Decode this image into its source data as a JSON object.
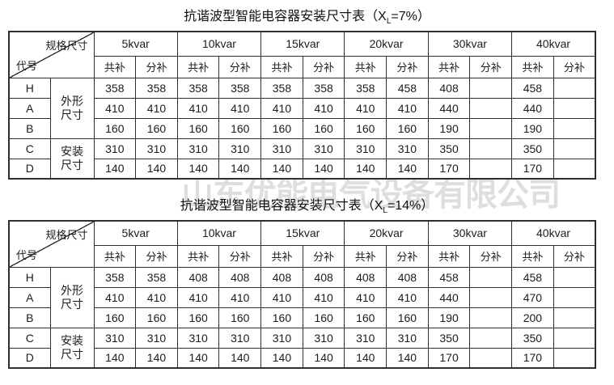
{
  "page": {
    "background": "#ffffff",
    "border_color": "#2e2e2e",
    "text_color": "#1c1c1c",
    "watermark_color": "#dedede"
  },
  "watermark": {
    "text": "山东优能电气设备有限公司"
  },
  "tables": [
    {
      "title": {
        "prefix": "抗谐波型智能电容器安装尺寸表（X",
        "subscript": "L",
        "suffix": "=7%）"
      },
      "corner": {
        "top_right": "规格尺寸",
        "bottom_left": "代号"
      },
      "col_groups": [
        "5kvar",
        "10kvar",
        "15kvar",
        "20kvar",
        "30kvar",
        "40kvar"
      ],
      "sub_headers": [
        "共补",
        "分补"
      ],
      "row_groups": [
        {
          "label": "外形\n尺寸",
          "row_codes": [
            "H",
            "A",
            "B"
          ]
        },
        {
          "label": "安装\n尺寸",
          "row_codes": [
            "C",
            "D"
          ]
        }
      ],
      "rows": [
        {
          "code": "H",
          "values": [
            "358",
            "358",
            "358",
            "358",
            "358",
            "358",
            "358",
            "458",
            "408",
            "",
            "458",
            ""
          ]
        },
        {
          "code": "A",
          "values": [
            "410",
            "410",
            "410",
            "410",
            "410",
            "410",
            "410",
            "410",
            "440",
            "",
            "440",
            ""
          ]
        },
        {
          "code": "B",
          "values": [
            "160",
            "160",
            "160",
            "160",
            "160",
            "160",
            "160",
            "160",
            "190",
            "",
            "190",
            ""
          ]
        },
        {
          "code": "C",
          "values": [
            "310",
            "310",
            "310",
            "310",
            "310",
            "310",
            "310",
            "310",
            "350",
            "",
            "350",
            ""
          ]
        },
        {
          "code": "D",
          "values": [
            "140",
            "140",
            "140",
            "140",
            "140",
            "140",
            "140",
            "140",
            "170",
            "",
            "170",
            ""
          ]
        }
      ]
    },
    {
      "title": {
        "prefix": "抗谐波型智能电容器安装尺寸表（X",
        "subscript": "L",
        "suffix": "=14%）"
      },
      "corner": {
        "top_right": "规格尺寸",
        "bottom_left": "代号"
      },
      "col_groups": [
        "5kvar",
        "10kvar",
        "15kvar",
        "20kvar",
        "30kvar",
        "40kvar"
      ],
      "sub_headers": [
        "共补",
        "分补"
      ],
      "row_groups": [
        {
          "label": "外形\n尺寸",
          "row_codes": [
            "H",
            "A",
            "B"
          ]
        },
        {
          "label": "安装\n尺寸",
          "row_codes": [
            "C",
            "D"
          ]
        }
      ],
      "rows": [
        {
          "code": "H",
          "values": [
            "358",
            "358",
            "408",
            "408",
            "408",
            "408",
            "408",
            "408",
            "458",
            "",
            "458",
            ""
          ]
        },
        {
          "code": "A",
          "values": [
            "410",
            "410",
            "410",
            "410",
            "410",
            "410",
            "410",
            "410",
            "440",
            "",
            "470",
            ""
          ]
        },
        {
          "code": "B",
          "values": [
            "160",
            "160",
            "160",
            "160",
            "160",
            "160",
            "160",
            "160",
            "190",
            "",
            "200",
            ""
          ]
        },
        {
          "code": "C",
          "values": [
            "310",
            "310",
            "310",
            "310",
            "310",
            "310",
            "310",
            "310",
            "350",
            "",
            "350",
            ""
          ]
        },
        {
          "code": "D",
          "values": [
            "140",
            "140",
            "140",
            "140",
            "140",
            "140",
            "140",
            "140",
            "170",
            "",
            "170",
            ""
          ]
        }
      ]
    }
  ]
}
